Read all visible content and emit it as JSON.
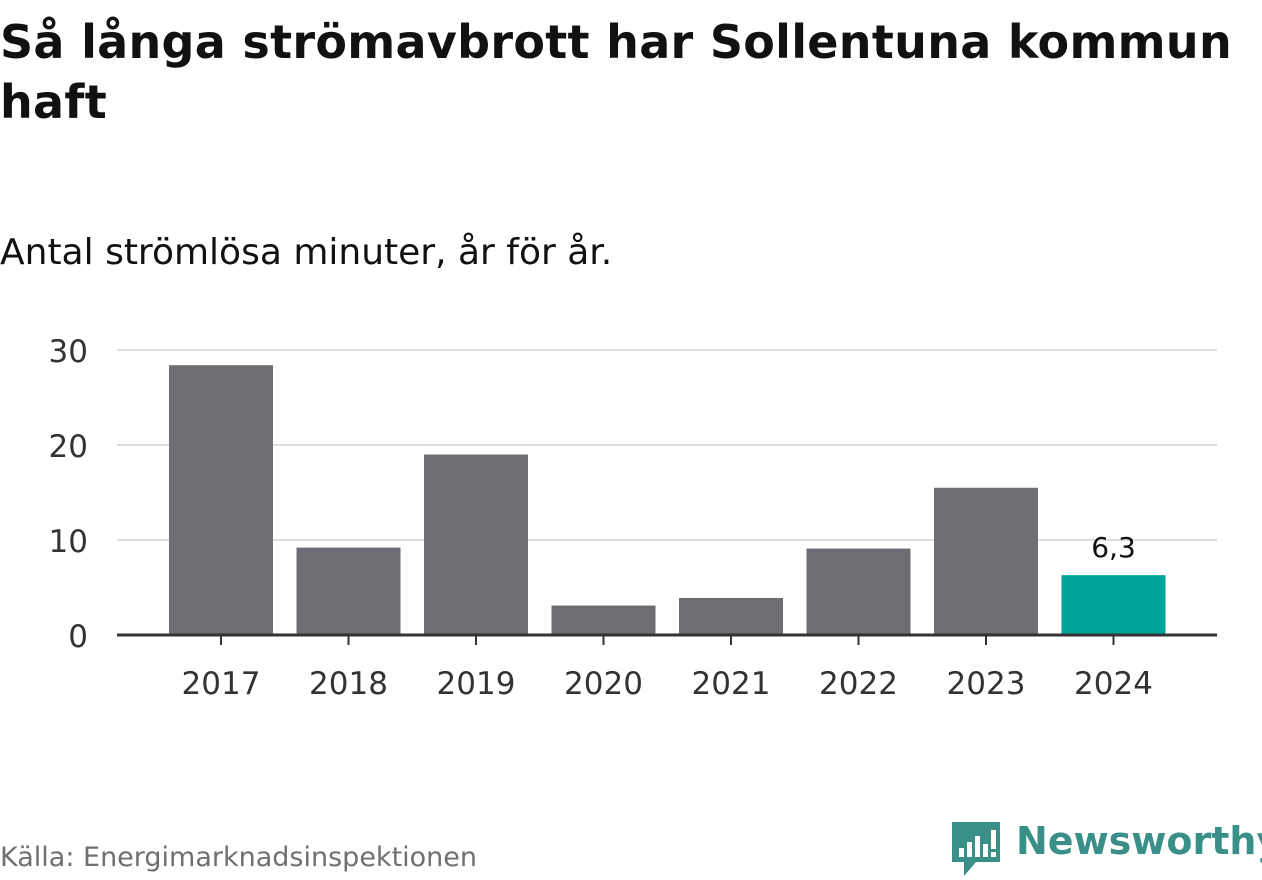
{
  "chart_data": {
    "type": "bar",
    "title": "Så långa strömavbrott har Sollentuna kommun haft",
    "subtitle": "Antal strömlösa minuter, år för år.",
    "xlabel": "",
    "ylabel": "",
    "categories": [
      "2017",
      "2018",
      "2019",
      "2020",
      "2021",
      "2022",
      "2023",
      "2024"
    ],
    "values": [
      28.4,
      9.2,
      19.0,
      3.1,
      3.9,
      9.1,
      15.5,
      6.3
    ],
    "ylim": [
      0,
      30
    ],
    "yticks": [
      0,
      10,
      20,
      30
    ],
    "ytick_labels": [
      "0",
      "10",
      "20",
      "30"
    ],
    "grid": true,
    "highlight_index": 7,
    "data_labels": [
      {
        "index": 7,
        "text": "6,3"
      }
    ],
    "colors": {
      "bar": "#6e6d73",
      "highlight": "#00a49a",
      "grid": "#dddddd",
      "axis": "#333333"
    }
  },
  "source": "Källa: Energimarknadsinspektionen",
  "brand": {
    "name": "Newsworthy",
    "logo_icon": "newsworthy-chart-bubble-icon",
    "color": "#3b8f89"
  }
}
